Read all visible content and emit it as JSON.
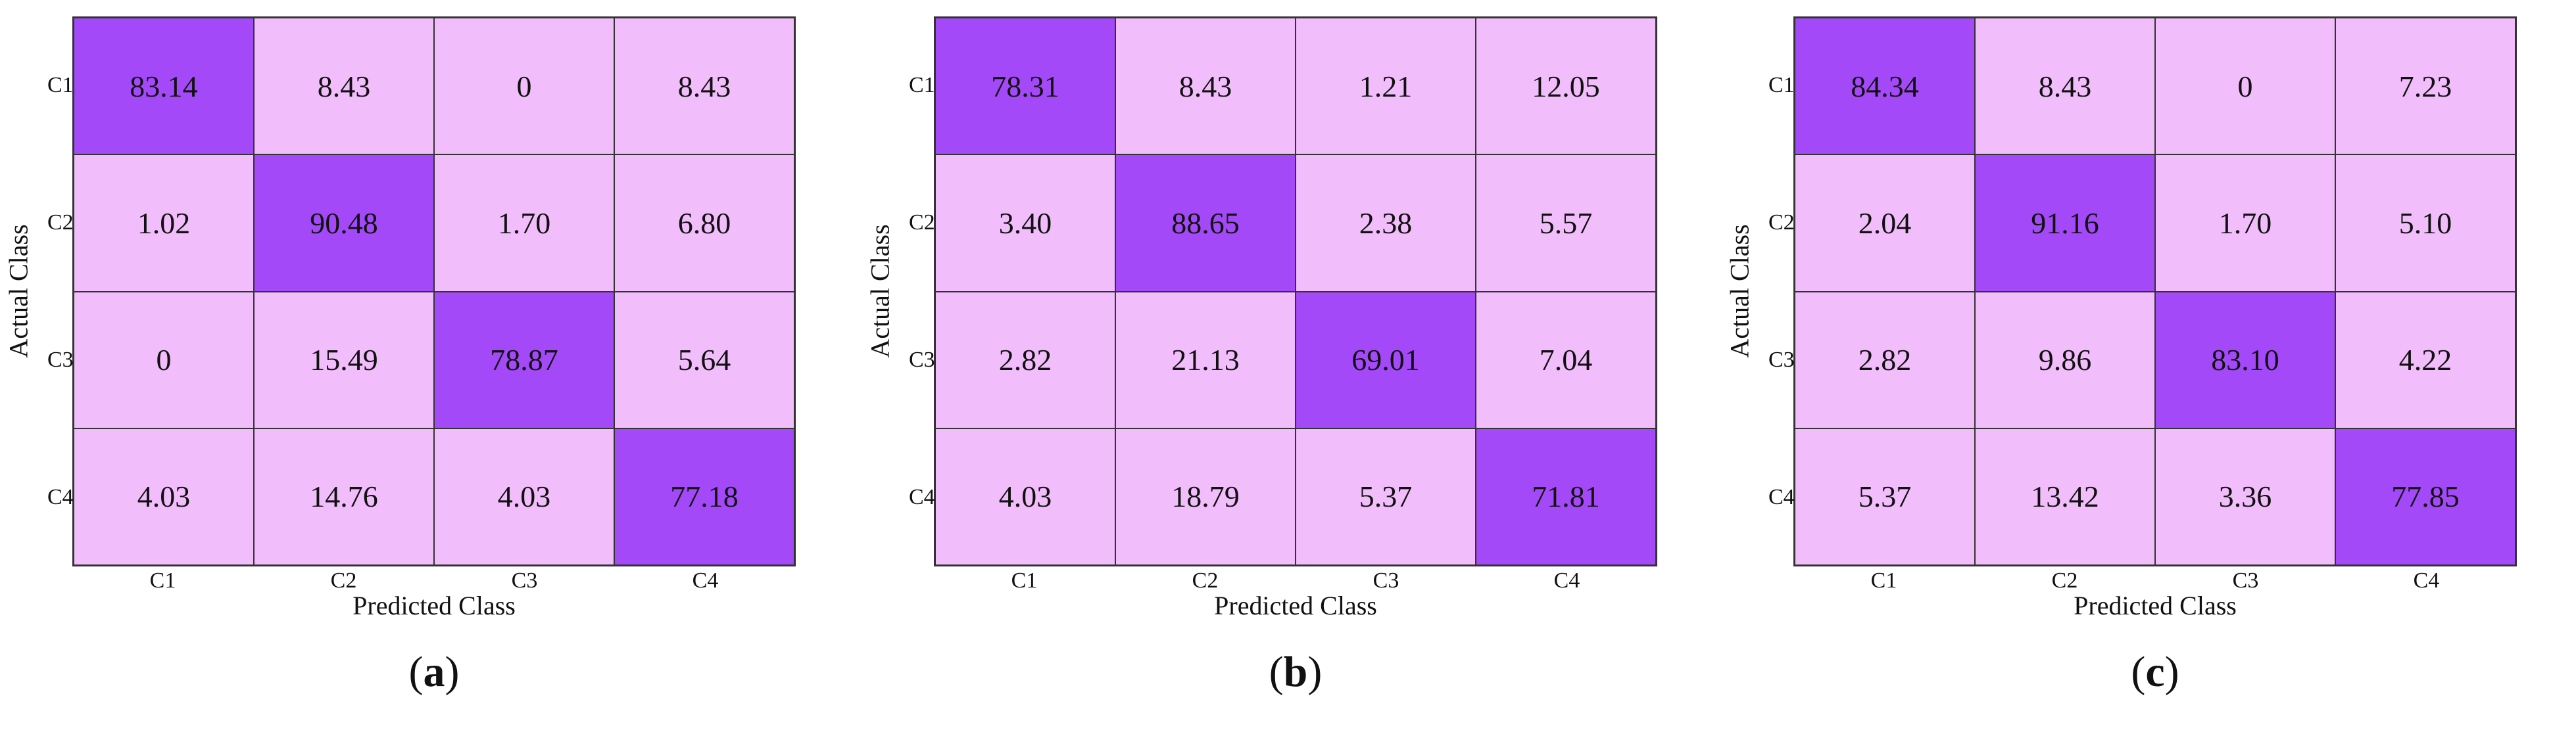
{
  "colors": {
    "diag": "#a349f8",
    "offdiag": "#f2bdfb",
    "border": "#333333"
  },
  "chart_data": [
    {
      "type": "heatmap",
      "panel_label": "a",
      "xlabel": "Predicted Class",
      "ylabel": "Actual Class",
      "x_categories": [
        "C1",
        "C2",
        "C3",
        "C4"
      ],
      "y_categories": [
        "C1",
        "C2",
        "C3",
        "C4"
      ],
      "values": [
        [
          "83.14",
          "8.43",
          "0",
          "8.43"
        ],
        [
          "1.02",
          "90.48",
          "1.70",
          "6.80"
        ],
        [
          "0",
          "15.49",
          "78.87",
          "5.64"
        ],
        [
          "4.03",
          "14.76",
          "4.03",
          "77.18"
        ]
      ]
    },
    {
      "type": "heatmap",
      "panel_label": "b",
      "xlabel": "Predicted Class",
      "ylabel": "Actual Class",
      "x_categories": [
        "C1",
        "C2",
        "C3",
        "C4"
      ],
      "y_categories": [
        "C1",
        "C2",
        "C3",
        "C4"
      ],
      "values": [
        [
          "78.31",
          "8.43",
          "1.21",
          "12.05"
        ],
        [
          "3.40",
          "88.65",
          "2.38",
          "5.57"
        ],
        [
          "2.82",
          "21.13",
          "69.01",
          "7.04"
        ],
        [
          "4.03",
          "18.79",
          "5.37",
          "71.81"
        ]
      ]
    },
    {
      "type": "heatmap",
      "panel_label": "c",
      "xlabel": "Predicted Class",
      "ylabel": "Actual Class",
      "x_categories": [
        "C1",
        "C2",
        "C3",
        "C4"
      ],
      "y_categories": [
        "C1",
        "C2",
        "C3",
        "C4"
      ],
      "values": [
        [
          "84.34",
          "8.43",
          "0",
          "7.23"
        ],
        [
          "2.04",
          "91.16",
          "1.70",
          "5.10"
        ],
        [
          "2.82",
          "9.86",
          "83.10",
          "4.22"
        ],
        [
          "5.37",
          "13.42",
          "3.36",
          "77.85"
        ]
      ]
    }
  ]
}
